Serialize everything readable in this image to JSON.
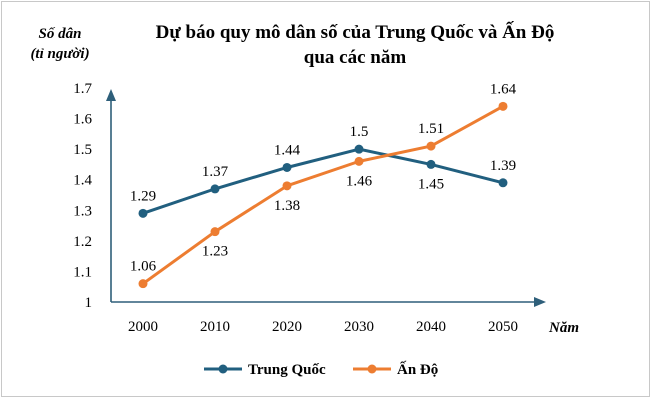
{
  "chart_data": {
    "type": "line",
    "title_line1": "Dự báo quy mô dân số của Trung Quốc và Ấn Độ",
    "title_line2": "qua các năm",
    "ylabel_line1": "Số dân",
    "ylabel_line2": "(tỉ người)",
    "xlabel": "Năm",
    "ylim": [
      1,
      1.7
    ],
    "yticks": [
      "1",
      "1.1",
      "1.2",
      "1.3",
      "1.4",
      "1.5",
      "1.6",
      "1.7"
    ],
    "categories": [
      "2000",
      "2010",
      "2020",
      "2030",
      "2040",
      "2050"
    ],
    "series": [
      {
        "name": "Trung Quốc",
        "color": "#215F7F",
        "values": [
          1.29,
          1.37,
          1.44,
          1.5,
          1.45,
          1.39
        ],
        "labels": [
          "1.29",
          "1.37",
          "1.44",
          "1.5",
          "1.45",
          "1.39"
        ],
        "label_pos": [
          "above",
          "above",
          "above",
          "above",
          "below",
          "above"
        ]
      },
      {
        "name": "Ấn Độ",
        "color": "#ED7D31",
        "values": [
          1.06,
          1.23,
          1.38,
          1.46,
          1.51,
          1.64
        ],
        "labels": [
          "1.06",
          "1.23",
          "1.38",
          "1.46",
          "1.51",
          "1.64"
        ],
        "label_pos": [
          "above",
          "below",
          "below",
          "below",
          "above",
          "above"
        ]
      }
    ],
    "legend": "bottom-center",
    "axis_color": "#2E5F7A"
  }
}
